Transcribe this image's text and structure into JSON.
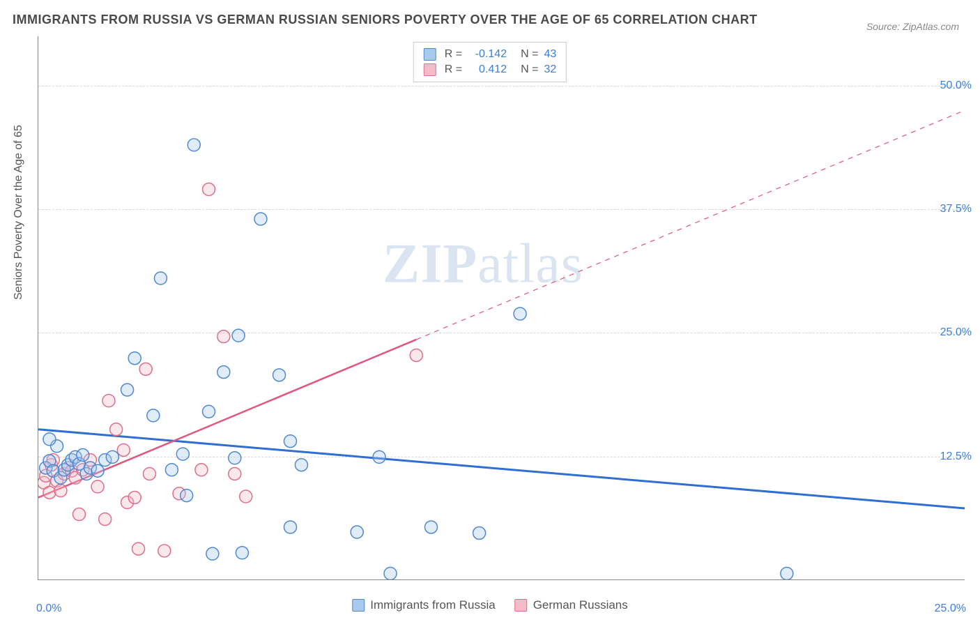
{
  "title": "IMMIGRANTS FROM RUSSIA VS GERMAN RUSSIAN SENIORS POVERTY OVER THE AGE OF 65 CORRELATION CHART",
  "source": "Source: ZipAtlas.com",
  "watermark": {
    "bold": "ZIP",
    "rest": "atlas"
  },
  "y_axis_label": "Seniors Poverty Over the Age of 65",
  "chart": {
    "type": "scatter-with-regression",
    "background_color": "#ffffff",
    "grid_color": "#d8d8d8",
    "axis_color": "#888888",
    "marker_radius": 9,
    "xlim": [
      0,
      25
    ],
    "ylim": [
      0,
      55
    ],
    "y_ticks": [
      12.5,
      25.0,
      37.5,
      50.0
    ],
    "y_tick_labels": [
      "12.5%",
      "25.0%",
      "37.5%",
      "50.0%"
    ],
    "x_tick_positions": [
      0,
      2.5,
      5.0,
      7.5,
      10.0,
      12.5,
      15.0,
      17.5,
      20.0,
      22.5,
      25.0
    ],
    "x_label_start": "0.0%",
    "x_label_end": "25.0%",
    "series": [
      {
        "key": "immigrants",
        "name": "Immigrants from Russia",
        "color_fill": "#a9c9ee",
        "color_stroke": "#4f88d1",
        "R": "-0.142",
        "N": "43",
        "regression": {
          "x1": 0,
          "y1": 15.2,
          "x2": 25,
          "y2": 7.2,
          "solid_until_x": 25,
          "line_color": "#2e6fd1",
          "line_width": 3
        },
        "points": [
          [
            0.2,
            11.3
          ],
          [
            0.3,
            12.0
          ],
          [
            0.4,
            11.0
          ],
          [
            0.5,
            13.5
          ],
          [
            0.6,
            10.3
          ],
          [
            0.7,
            11.1
          ],
          [
            0.8,
            11.6
          ],
          [
            0.9,
            12.1
          ],
          [
            1.0,
            12.4
          ],
          [
            1.1,
            11.7
          ],
          [
            1.2,
            12.6
          ],
          [
            1.3,
            10.7
          ],
          [
            1.4,
            11.3
          ],
          [
            0.3,
            14.2
          ],
          [
            1.6,
            11.0
          ],
          [
            1.8,
            12.1
          ],
          [
            2.0,
            12.4
          ],
          [
            2.4,
            19.2
          ],
          [
            2.6,
            22.4
          ],
          [
            3.1,
            16.6
          ],
          [
            3.3,
            30.5
          ],
          [
            3.9,
            12.7
          ],
          [
            4.0,
            8.5
          ],
          [
            4.2,
            44.0
          ],
          [
            3.6,
            11.1
          ],
          [
            4.6,
            17.0
          ],
          [
            4.7,
            2.6
          ],
          [
            5.0,
            21.0
          ],
          [
            5.3,
            12.3
          ],
          [
            5.4,
            24.7
          ],
          [
            5.5,
            2.7
          ],
          [
            6.0,
            36.5
          ],
          [
            6.5,
            20.7
          ],
          [
            6.8,
            14.0
          ],
          [
            7.1,
            11.6
          ],
          [
            6.8,
            5.3
          ],
          [
            8.6,
            4.8
          ],
          [
            9.2,
            12.4
          ],
          [
            9.5,
            0.6
          ],
          [
            10.6,
            5.3
          ],
          [
            11.9,
            4.7
          ],
          [
            13.0,
            26.9
          ],
          [
            20.2,
            0.6
          ]
        ]
      },
      {
        "key": "german",
        "name": "German Russians",
        "color_fill": "#f3bcc8",
        "color_stroke": "#de6e8a",
        "R": "0.412",
        "N": "32",
        "regression": {
          "x1": 0,
          "y1": 8.3,
          "x2": 25,
          "y2": 47.5,
          "solid_until_x": 10.2,
          "line_color": "#e2557d",
          "line_width": 2.5
        },
        "points": [
          [
            0.15,
            9.8
          ],
          [
            0.2,
            10.5
          ],
          [
            0.3,
            8.8
          ],
          [
            0.35,
            11.6
          ],
          [
            0.4,
            12.1
          ],
          [
            0.5,
            10.0
          ],
          [
            0.6,
            9.0
          ],
          [
            0.7,
            10.7
          ],
          [
            0.8,
            11.3
          ],
          [
            0.9,
            11.0
          ],
          [
            1.0,
            10.3
          ],
          [
            1.1,
            6.6
          ],
          [
            1.2,
            11.1
          ],
          [
            1.4,
            12.1
          ],
          [
            1.6,
            9.4
          ],
          [
            1.8,
            6.1
          ],
          [
            1.9,
            18.1
          ],
          [
            2.1,
            15.2
          ],
          [
            2.4,
            7.8
          ],
          [
            2.3,
            13.1
          ],
          [
            2.6,
            8.3
          ],
          [
            2.7,
            3.1
          ],
          [
            2.9,
            21.3
          ],
          [
            3.0,
            10.7
          ],
          [
            3.4,
            2.9
          ],
          [
            3.8,
            8.7
          ],
          [
            4.4,
            11.1
          ],
          [
            4.6,
            39.5
          ],
          [
            5.0,
            24.6
          ],
          [
            5.3,
            10.7
          ],
          [
            5.6,
            8.4
          ],
          [
            10.2,
            22.7
          ]
        ]
      }
    ]
  },
  "legend_top": {
    "r_prefix": "R =",
    "n_prefix": "N ="
  }
}
